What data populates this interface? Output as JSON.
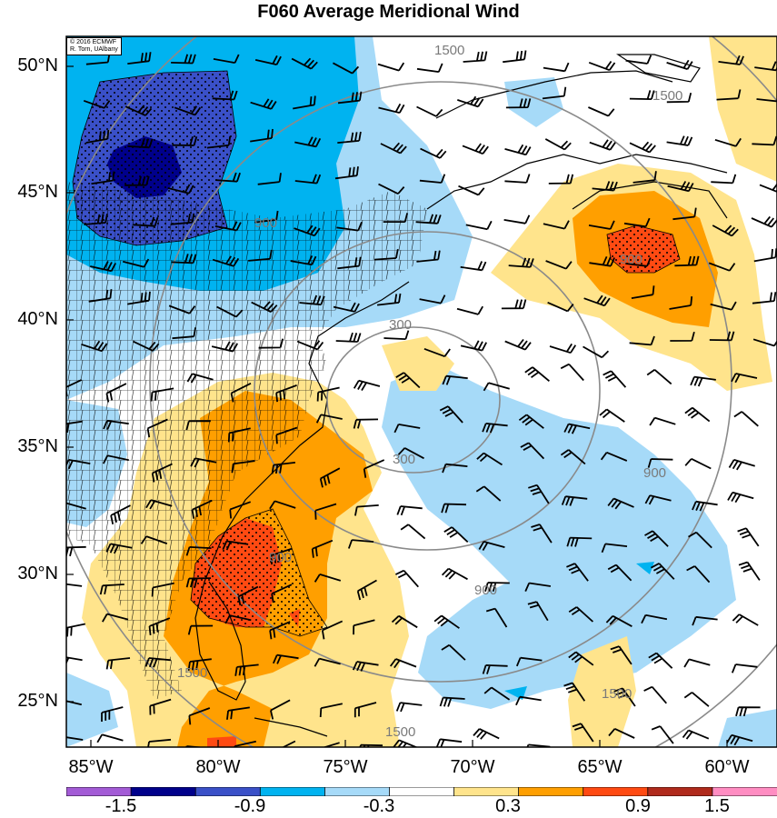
{
  "title": "F060 Average Meridional Wind",
  "copyright": {
    "line1": "© 2016 ECMWF",
    "line2": "R. Torn, UAlbany"
  },
  "lat_labels": [
    "50°N",
    "45°N",
    "40°N",
    "35°N",
    "30°N",
    "25°N"
  ],
  "lon_labels": [
    "85°W",
    "80°W",
    "75°W",
    "70°W",
    "65°W",
    "60°W"
  ],
  "contour_labels": [
    "1500",
    "1500",
    "1500",
    "1500",
    "1500",
    "900",
    "900",
    "900",
    "900",
    "900",
    "300",
    "300"
  ],
  "colorbar": {
    "labels": [
      "-1.5",
      "-0.9",
      "-0.3",
      "0.3",
      "0.9",
      "1.5"
    ],
    "colors": [
      "#a35bd6",
      "#00008b",
      "#3a50c8",
      "#00b3f0",
      "#a6daf8",
      "#ffffff",
      "#ffe48c",
      "#ff9f00",
      "#ff4a12",
      "#b02a1c",
      "#ff8dc2"
    ]
  },
  "fill_colors": {
    "dark_blue": "#00008b",
    "medium_blue": "#3a50c8",
    "cyan": "#00b3f0",
    "light_blue": "#a6daf8",
    "light_yellow": "#ffe48c",
    "orange": "#ff9f00",
    "red_orange": "#ff4a12"
  }
}
